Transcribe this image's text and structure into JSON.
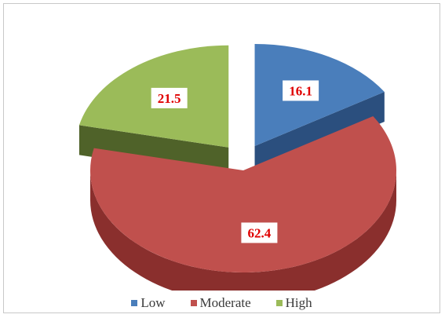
{
  "chart_data": {
    "type": "pie",
    "title": "",
    "categories": [
      "Low",
      "Moderate",
      "High"
    ],
    "values": [
      16.1,
      62.4,
      21.5
    ],
    "colors": {
      "Low": {
        "top": "#4a7ebb",
        "side": "#2b4f7e"
      },
      "Moderate": {
        "top": "#c0504d",
        "side": "#8a2f2d"
      },
      "High": {
        "top": "#9bbb59",
        "side": "#4f6229"
      }
    },
    "legend_position": "bottom",
    "exploded": [
      "Low",
      "High"
    ],
    "data_labels": true,
    "three_d": true
  }
}
